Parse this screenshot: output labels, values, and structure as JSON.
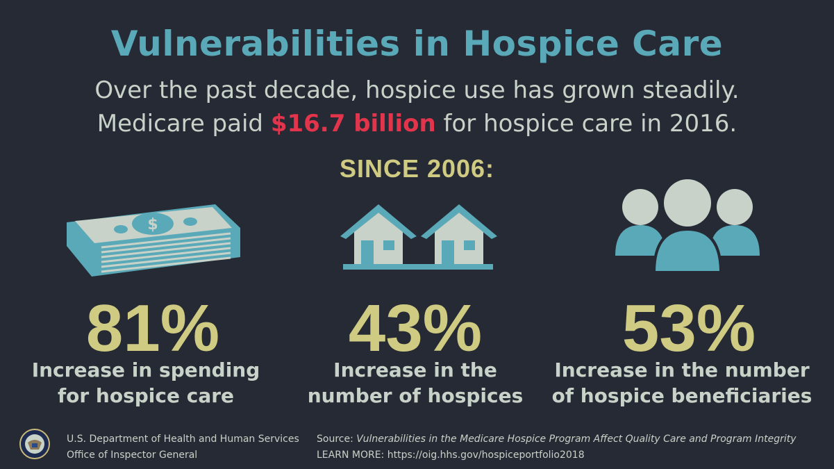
{
  "title": "Vulnerabilities in Hospice Care",
  "subtitle_line1": "Over the past decade, hospice use has grown steadily.",
  "subtitle_line2": {
    "before": "Medicare paid ",
    "highlight": "$16.7 billion",
    "after": " for hospice care in 2016."
  },
  "since_label": "SINCE 2006:",
  "stats": [
    {
      "icon": "money-stack-icon",
      "value": "81%",
      "label_line1": "Increase in spending",
      "label_line2": "for hospice care"
    },
    {
      "icon": "houses-icon",
      "value": "43%",
      "label_line1": "Increase in the",
      "label_line2": "number of hospices"
    },
    {
      "icon": "people-icon",
      "value": "53%",
      "label_line1": "Increase in the number",
      "label_line2": "of hospice beneficiaries"
    }
  ],
  "footer": {
    "agency_line1": "U.S. Department of Health and Human Services",
    "agency_line2": "Office of Inspector General",
    "source_prefix": "Source: ",
    "source_title": "Vulnerabilities in the Medicare Hospice Program Affect Quality Care and Program Integrity",
    "learn_more": "LEARN MORE: https://oig.hhs.gov/hospiceportfolio2018"
  },
  "colors": {
    "background": "#262a35",
    "title": "#5aa9b8",
    "text": "#c9d2c8",
    "highlight": "#e2354c",
    "stat": "#cfcb82"
  }
}
